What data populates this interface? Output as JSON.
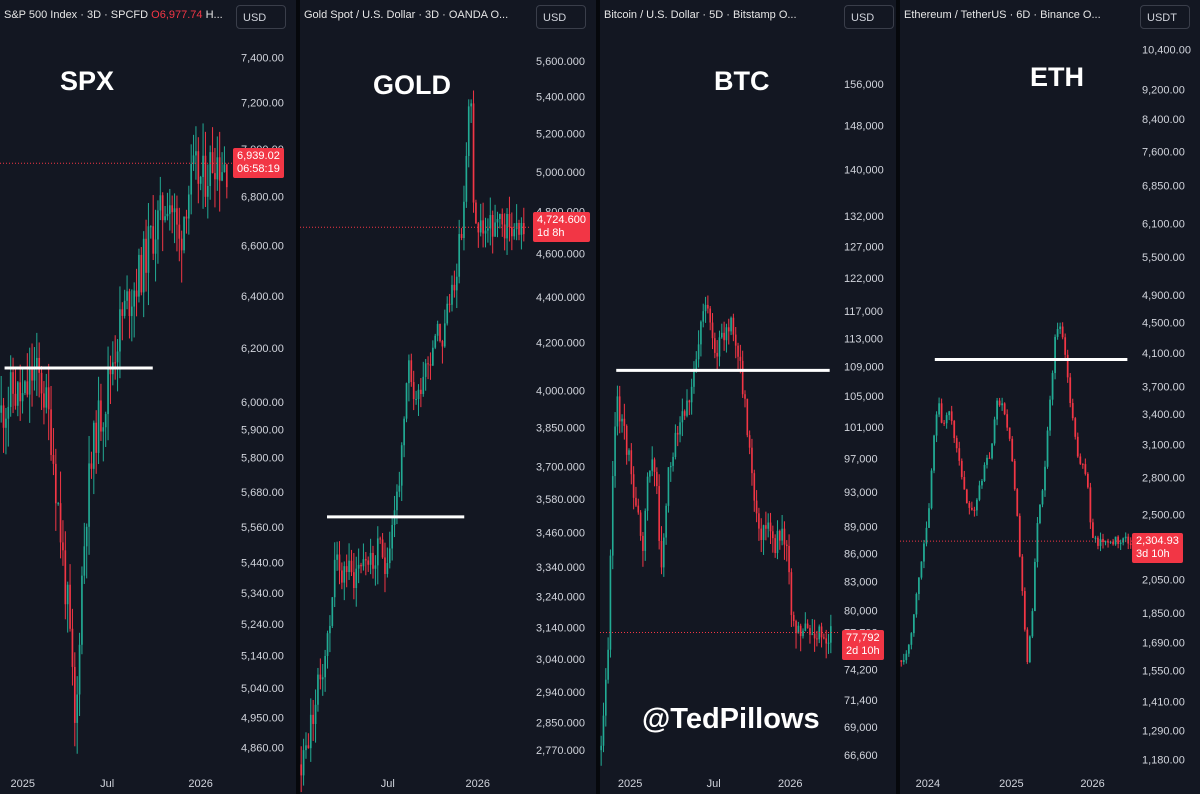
{
  "watermark": "@TedPillows",
  "colors": {
    "up": "#22ab94",
    "down": "#f23645",
    "bg": "#131722",
    "line": "#ffffff"
  },
  "chart_data": [
    {
      "type": "candlestick",
      "header": "S&P 500 Index · 3D · SPCFD",
      "header_o": "O",
      "header_value": "6,977.74",
      "header_tail": "H...",
      "currency": "USD",
      "big_label": "SPX",
      "last_price": "6,939.02",
      "countdown": "06:58:19",
      "price_line": 6939.02,
      "scale": "log",
      "ylim": [
        4800,
        7480
      ],
      "ytick_labels": [
        "7,400.00",
        "7,200.00",
        "7,000.00",
        "6,800.00",
        "6,600.00",
        "6,400.00",
        "6,200.00",
        "6,000.00",
        "5,900.00",
        "5,800.00",
        "5,680.00",
        "5,560.00",
        "5,440.00",
        "5,340.00",
        "5,240.00",
        "5,140.00",
        "5,040.00",
        "4,950.00",
        "4,860.00"
      ],
      "ytick_values": [
        7400,
        7200,
        7000,
        6800,
        6600,
        6400,
        6200,
        6000,
        5900,
        5800,
        5680,
        5560,
        5440,
        5340,
        5240,
        5140,
        5040,
        4950,
        4860
      ],
      "xtick_labels": [
        "2025",
        "Jul",
        "2026"
      ],
      "xtick_positions": [
        0.1,
        0.47,
        0.88
      ],
      "resistance": {
        "value": 6125,
        "from": 0.02,
        "to": 0.67
      },
      "path": [
        [
          0,
          5960
        ],
        [
          0.05,
          6040
        ],
        [
          0.1,
          6000
        ],
        [
          0.14,
          6110
        ],
        [
          0.18,
          6070
        ],
        [
          0.22,
          5900
        ],
        [
          0.25,
          5650
        ],
        [
          0.28,
          5400
        ],
        [
          0.3,
          5250
        ],
        [
          0.32,
          5000
        ],
        [
          0.33,
          4860
        ],
        [
          0.35,
          5300
        ],
        [
          0.38,
          5650
        ],
        [
          0.42,
          5900
        ],
        [
          0.46,
          6000
        ],
        [
          0.49,
          6150
        ],
        [
          0.53,
          6300
        ],
        [
          0.57,
          6400
        ],
        [
          0.62,
          6500
        ],
        [
          0.67,
          6650
        ],
        [
          0.71,
          6720
        ],
        [
          0.74,
          6820
        ],
        [
          0.77,
          6700
        ],
        [
          0.79,
          6600
        ],
        [
          0.82,
          6800
        ],
        [
          0.86,
          6900
        ],
        [
          0.89,
          6860
        ],
        [
          0.92,
          6920
        ],
        [
          0.95,
          6980
        ],
        [
          0.97,
          6939
        ]
      ]
    },
    {
      "type": "candlestick",
      "header": "Gold Spot / U.S. Dollar · 3D · OANDA O...",
      "currency": "USD",
      "big_label": "GOLD",
      "last_price": "4,724.600",
      "countdown": "1d 8h",
      "price_line": 4724.6,
      "scale": "log",
      "ylim": [
        2720,
        5720
      ],
      "ytick_labels": [
        "5,600.000",
        "5,400.000",
        "5,200.000",
        "5,000.000",
        "4,800.000",
        "4,600.000",
        "4,400.000",
        "4,200.000",
        "4,000.000",
        "3,850.000",
        "3,700.000",
        "3,580.000",
        "3,460.000",
        "3,340.000",
        "3,240.000",
        "3,140.000",
        "3,040.000",
        "2,940.000",
        "2,850.000",
        "2,770.000"
      ],
      "ytick_values": [
        5600,
        5400,
        5200,
        5000,
        4800,
        4600,
        4400,
        4200,
        4000,
        3850,
        3700,
        3580,
        3460,
        3340,
        3240,
        3140,
        3040,
        2940,
        2850,
        2770
      ],
      "xtick_labels": [
        "Jul",
        "2026"
      ],
      "xtick_positions": [
        0.39,
        0.79
      ],
      "resistance": {
        "value": 3515,
        "from": 0.12,
        "to": 0.73
      },
      "path": [
        [
          0,
          2730
        ],
        [
          0.03,
          2800
        ],
        [
          0.06,
          2900
        ],
        [
          0.09,
          3000
        ],
        [
          0.13,
          3150
        ],
        [
          0.15,
          3400
        ],
        [
          0.17,
          3300
        ],
        [
          0.2,
          3350
        ],
        [
          0.23,
          3300
        ],
        [
          0.26,
          3350
        ],
        [
          0.29,
          3380
        ],
        [
          0.32,
          3340
        ],
        [
          0.35,
          3400
        ],
        [
          0.38,
          3350
        ],
        [
          0.41,
          3500
        ],
        [
          0.44,
          3650
        ],
        [
          0.46,
          3800
        ],
        [
          0.48,
          4100
        ],
        [
          0.5,
          4000
        ],
        [
          0.52,
          3950
        ],
        [
          0.55,
          4100
        ],
        [
          0.58,
          4150
        ],
        [
          0.61,
          4300
        ],
        [
          0.63,
          4200
        ],
        [
          0.66,
          4350
        ],
        [
          0.69,
          4500
        ],
        [
          0.72,
          4700
        ],
        [
          0.74,
          5000
        ],
        [
          0.76,
          5500
        ],
        [
          0.77,
          5000
        ],
        [
          0.78,
          4724
        ]
      ]
    },
    {
      "type": "candlestick",
      "header": "Bitcoin / U.S. Dollar · 5D · Bitstamp O...",
      "currency": "USD",
      "big_label": "BTC",
      "last_price": "77,792",
      "countdown": "2d 10h",
      "price_line": 77792,
      "scale": "log",
      "ylim": [
        65500,
        165000
      ],
      "ytick_labels": [
        "156,000",
        "148,000",
        "140,000",
        "132,000",
        "127,000",
        "122,000",
        "117,000",
        "113,000",
        "109,000",
        "105,000",
        "101,000",
        "97,000",
        "93,000",
        "89,000",
        "86,000",
        "83,000",
        "80,000",
        "77,792",
        "74,200",
        "71,400",
        "69,000",
        "66,600"
      ],
      "ytick_values": [
        156000,
        148000,
        140000,
        132000,
        127000,
        122000,
        117000,
        113000,
        109000,
        105000,
        101000,
        97000,
        93000,
        89000,
        86000,
        83000,
        80000,
        77792,
        74200,
        71400,
        69000,
        66600
      ],
      "xtick_labels": [
        "2025",
        "Jul",
        "2026"
      ],
      "xtick_positions": [
        0.13,
        0.49,
        0.82
      ],
      "resistance": {
        "value": 108500,
        "from": 0.07,
        "to": 0.99
      },
      "path": [
        [
          0,
          67000
        ],
        [
          0.03,
          75000
        ],
        [
          0.05,
          95000
        ],
        [
          0.07,
          105000
        ],
        [
          0.1,
          100000
        ],
        [
          0.13,
          96000
        ],
        [
          0.16,
          90000
        ],
        [
          0.18,
          85000
        ],
        [
          0.21,
          97000
        ],
        [
          0.24,
          95000
        ],
        [
          0.26,
          83000
        ],
        [
          0.29,
          94000
        ],
        [
          0.32,
          100000
        ],
        [
          0.35,
          103000
        ],
        [
          0.38,
          105000
        ],
        [
          0.41,
          108000
        ],
        [
          0.44,
          116000
        ],
        [
          0.47,
          118000
        ],
        [
          0.49,
          113000
        ],
        [
          0.51,
          111000
        ],
        [
          0.54,
          114000
        ],
        [
          0.57,
          116000
        ],
        [
          0.6,
          110000
        ],
        [
          0.62,
          105000
        ],
        [
          0.64,
          100000
        ],
        [
          0.67,
          92000
        ],
        [
          0.7,
          88000
        ],
        [
          0.73,
          90000
        ],
        [
          0.76,
          87000
        ],
        [
          0.79,
          89000
        ],
        [
          0.81,
          87000
        ],
        [
          0.83,
          77792
        ]
      ]
    },
    {
      "type": "candlestick",
      "header": "Ethereum / TetherUS · 6D · Binance O...",
      "currency": "USDT",
      "big_label": "ETH",
      "last_price": "2,304.93",
      "countdown": "3d 10h",
      "price_line": 2304.93,
      "scale": "log",
      "ylim": [
        1150,
        10700
      ],
      "ytick_labels": [
        "10,400.00",
        "9,200.00",
        "8,400.00",
        "7,600.00",
        "6,850.00",
        "6,100.00",
        "5,500.00",
        "4,900.00",
        "4,500.00",
        "4,100.00",
        "3,700.00",
        "3,400.00",
        "3,100.00",
        "2,800.00",
        "2,500.00",
        "2,050.00",
        "1,850.00",
        "1,690.00",
        "1,550.00",
        "1,410.00",
        "1,290.00",
        "1,180.00"
      ],
      "ytick_values": [
        10400,
        9200,
        8400,
        7600,
        6850,
        6100,
        5500,
        4900,
        4500,
        4100,
        3700,
        3400,
        3100,
        2800,
        2500,
        2050,
        1850,
        1690,
        1550,
        1410,
        1290,
        1180
      ],
      "xtick_labels": [
        "2024",
        "2025",
        "2026"
      ],
      "xtick_positions": [
        0.12,
        0.48,
        0.83
      ],
      "resistance": {
        "value": 4020,
        "from": 0.15,
        "to": 0.98
      },
      "path": [
        [
          0,
          1600
        ],
        [
          0.03,
          1650
        ],
        [
          0.06,
          1900
        ],
        [
          0.09,
          2200
        ],
        [
          0.12,
          2500
        ],
        [
          0.14,
          3100
        ],
        [
          0.16,
          3600
        ],
        [
          0.18,
          3300
        ],
        [
          0.21,
          3400
        ],
        [
          0.24,
          3100
        ],
        [
          0.27,
          2700
        ],
        [
          0.3,
          2500
        ],
        [
          0.33,
          2600
        ],
        [
          0.36,
          2900
        ],
        [
          0.39,
          3000
        ],
        [
          0.42,
          3600
        ],
        [
          0.45,
          3400
        ],
        [
          0.47,
          3200
        ],
        [
          0.5,
          2600
        ],
        [
          0.53,
          1900
        ],
        [
          0.55,
          1600
        ],
        [
          0.57,
          1800
        ],
        [
          0.59,
          2400
        ],
        [
          0.61,
          2600
        ],
        [
          0.63,
          3000
        ],
        [
          0.65,
          3600
        ],
        [
          0.67,
          4300
        ],
        [
          0.69,
          4500
        ],
        [
          0.71,
          4200
        ],
        [
          0.73,
          3700
        ],
        [
          0.75,
          3300
        ],
        [
          0.77,
          3000
        ],
        [
          0.79,
          2900
        ],
        [
          0.81,
          2800
        ],
        [
          0.83,
          2304
        ]
      ]
    }
  ]
}
